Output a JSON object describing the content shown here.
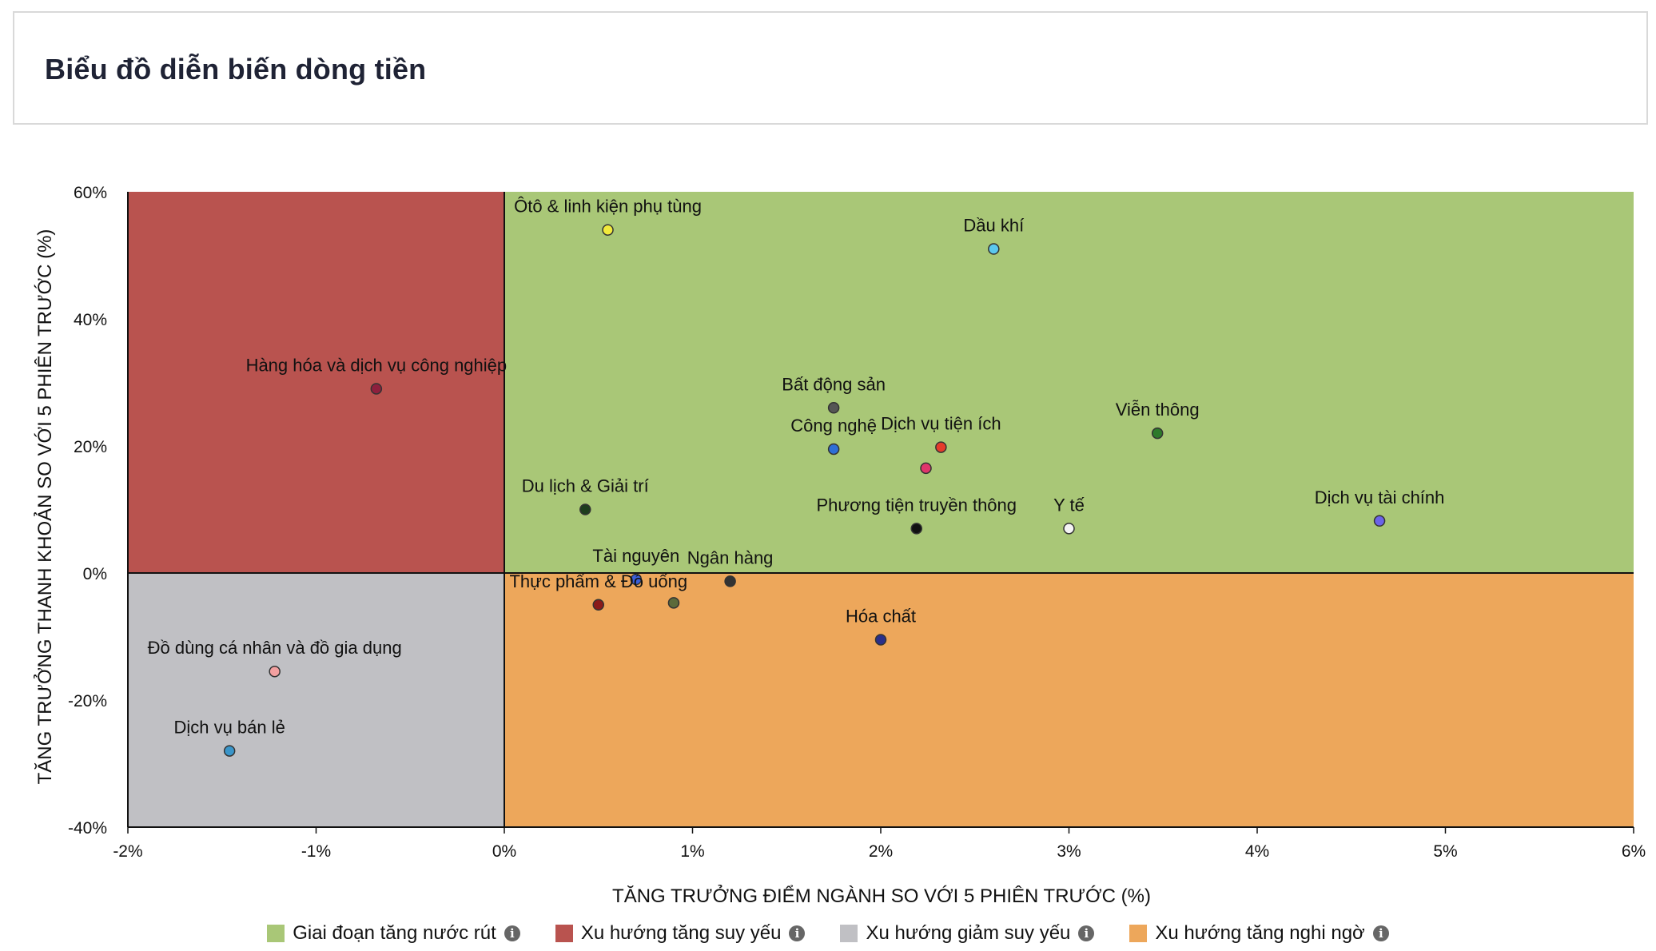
{
  "header": {
    "title": "Biểu đồ diễn biến dòng tiền"
  },
  "chart_data": {
    "type": "scatter",
    "xlabel": "TĂNG TRƯỞNG ĐIỂM NGÀNH SO VỚI 5 PHIÊN TRƯỚC (%)",
    "ylabel": "TĂNG TRƯỞNG THANH KHOẢN SO VỚI 5 PHIÊN TRƯỚC (%)",
    "xlim": [
      -2,
      6
    ],
    "ylim": [
      -40,
      60
    ],
    "x_ticks": [
      -2,
      -1,
      0,
      1,
      2,
      3,
      4,
      5,
      6
    ],
    "x_tick_labels": [
      "-2%",
      "-1%",
      "0%",
      "1%",
      "2%",
      "3%",
      "4%",
      "5%",
      "6%"
    ],
    "y_ticks": [
      60,
      40,
      20,
      0,
      -20,
      -40
    ],
    "y_tick_labels": [
      "60%",
      "40%",
      "20%",
      "0%",
      "-20%",
      "-40%"
    ],
    "quadrants": [
      {
        "label": "Giai đoạn tăng nước rút",
        "color": "#a9c777",
        "x": [
          0,
          6
        ],
        "y": [
          0,
          60
        ]
      },
      {
        "label": "Xu hướng tăng suy yếu",
        "color": "#b9534f",
        "x": [
          -2,
          0
        ],
        "y": [
          0,
          60
        ]
      },
      {
        "label": "Xu hướng giảm suy yếu",
        "color": "#c0c0c4",
        "x": [
          -2,
          0
        ],
        "y": [
          -40,
          0
        ]
      },
      {
        "label": "Xu hướng tăng nghi ngờ",
        "color": "#eda75b",
        "x": [
          0,
          6
        ],
        "y": [
          -40,
          0
        ]
      }
    ],
    "points": [
      {
        "name": "Ôtô & linh kiện phụ tùng",
        "x": 0.55,
        "y": 54,
        "color": "#f2ea3c"
      },
      {
        "name": "Dầu khí",
        "x": 2.6,
        "y": 51,
        "color": "#5bc8ee"
      },
      {
        "name": "Hàng hóa và dịch vụ công nghiệp",
        "x": -0.68,
        "y": 29,
        "color": "#8e1f3d"
      },
      {
        "name": "Bất động sản",
        "x": 1.75,
        "y": 26,
        "color": "#555555"
      },
      {
        "name": "Viễn thông",
        "x": 3.47,
        "y": 22,
        "color": "#2d7a2a"
      },
      {
        "name": "Công nghệ",
        "x": 1.75,
        "y": 19.5,
        "color": "#2e6fd6"
      },
      {
        "name": "Dịch vụ tiện ích",
        "x": 2.32,
        "y": 19.8,
        "color": "#e53b2b"
      },
      {
        "name": "",
        "x": 2.24,
        "y": 16.5,
        "color": "#e0366b"
      },
      {
        "name": "Du lịch & Giải trí",
        "x": 0.43,
        "y": 10,
        "color": "#1d3d1d"
      },
      {
        "name": "Phương tiện truyền thông",
        "x": 2.19,
        "y": 7,
        "color": "#111111"
      },
      {
        "name": "Y tế",
        "x": 3.0,
        "y": 7,
        "color": "#f4f4f4"
      },
      {
        "name": "Dịch vụ tài chính",
        "x": 4.65,
        "y": 8.2,
        "color": "#6b63e8"
      },
      {
        "name": "Tài nguyên",
        "x": 0.7,
        "y": -1,
        "color": "#3b5fd9"
      },
      {
        "name": "Ngân hàng",
        "x": 1.2,
        "y": -1.3,
        "color": "#333333"
      },
      {
        "name": "Thực phẩm & Đồ uống",
        "x": 0.5,
        "y": -5,
        "color": "#8a1a1a"
      },
      {
        "name": "",
        "x": 0.9,
        "y": -4.7,
        "color": "#5c6a3a"
      },
      {
        "name": "Hóa chất",
        "x": 2.0,
        "y": -10.5,
        "color": "#2a2f8a"
      },
      {
        "name": "Đồ dùng cá nhân và đồ gia dụng",
        "x": -1.22,
        "y": -15.5,
        "color": "#f3a0a0"
      },
      {
        "name": "Dịch vụ bán lẻ",
        "x": -1.46,
        "y": -28,
        "color": "#3a95c9"
      }
    ]
  },
  "legend": {
    "items": [
      {
        "label": "Giai đoạn tăng nước rút",
        "color": "#a9c777"
      },
      {
        "label": "Xu hướng tăng suy yếu",
        "color": "#b9534f"
      },
      {
        "label": "Xu hướng giảm suy yếu",
        "color": "#c0c0c4"
      },
      {
        "label": "Xu hướng tăng nghi ngờ",
        "color": "#eda75b"
      }
    ],
    "info_icon": "i"
  }
}
